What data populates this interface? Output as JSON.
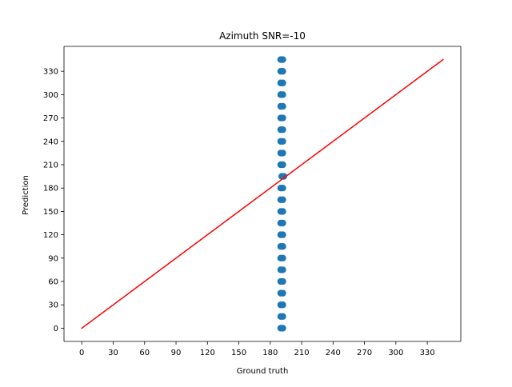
{
  "chart_data": {
    "type": "scatter",
    "title": "Azimuth SNR=-10",
    "xlabel": "Ground truth",
    "ylabel": "Prediction",
    "xlim": [
      -17,
      362
    ],
    "ylim": [
      -17,
      362
    ],
    "x_ticks": [
      0,
      30,
      60,
      90,
      120,
      150,
      180,
      210,
      240,
      270,
      300,
      330
    ],
    "y_ticks": [
      0,
      30,
      60,
      90,
      120,
      150,
      180,
      210,
      240,
      270,
      300,
      330
    ],
    "grid": false,
    "series": [
      {
        "kind": "points",
        "color": "#1f77b4",
        "points": [
          {
            "x": 190,
            "y": 0
          },
          {
            "x": 192,
            "y": 0
          },
          {
            "x": 190,
            "y": 15
          },
          {
            "x": 192,
            "y": 15
          },
          {
            "x": 190,
            "y": 30
          },
          {
            "x": 192,
            "y": 30
          },
          {
            "x": 190,
            "y": 45
          },
          {
            "x": 192,
            "y": 45
          },
          {
            "x": 190,
            "y": 60
          },
          {
            "x": 192,
            "y": 60
          },
          {
            "x": 190,
            "y": 75
          },
          {
            "x": 192,
            "y": 75
          },
          {
            "x": 190,
            "y": 90
          },
          {
            "x": 192,
            "y": 90
          },
          {
            "x": 190,
            "y": 105
          },
          {
            "x": 192,
            "y": 105
          },
          {
            "x": 190,
            "y": 120
          },
          {
            "x": 192,
            "y": 120
          },
          {
            "x": 190,
            "y": 135
          },
          {
            "x": 192,
            "y": 135
          },
          {
            "x": 190,
            "y": 150
          },
          {
            "x": 192,
            "y": 150
          },
          {
            "x": 190,
            "y": 165
          },
          {
            "x": 192,
            "y": 165
          },
          {
            "x": 190,
            "y": 180
          },
          {
            "x": 192,
            "y": 180
          },
          {
            "x": 191,
            "y": 195
          },
          {
            "x": 193,
            "y": 195
          },
          {
            "x": 190,
            "y": 210
          },
          {
            "x": 192,
            "y": 210
          },
          {
            "x": 190,
            "y": 225
          },
          {
            "x": 192,
            "y": 225
          },
          {
            "x": 190,
            "y": 240
          },
          {
            "x": 192,
            "y": 240
          },
          {
            "x": 190,
            "y": 255
          },
          {
            "x": 192,
            "y": 255
          },
          {
            "x": 190,
            "y": 270
          },
          {
            "x": 192,
            "y": 270
          },
          {
            "x": 190,
            "y": 285
          },
          {
            "x": 192,
            "y": 285
          },
          {
            "x": 190,
            "y": 300
          },
          {
            "x": 192,
            "y": 300
          },
          {
            "x": 190,
            "y": 315
          },
          {
            "x": 192,
            "y": 315
          },
          {
            "x": 190,
            "y": 330
          },
          {
            "x": 192,
            "y": 330
          },
          {
            "x": 190,
            "y": 345
          },
          {
            "x": 192,
            "y": 345
          }
        ]
      },
      {
        "kind": "line",
        "color": "#ff0000",
        "points": [
          {
            "x": 0,
            "y": 0
          },
          {
            "x": 345,
            "y": 345
          }
        ]
      }
    ]
  }
}
